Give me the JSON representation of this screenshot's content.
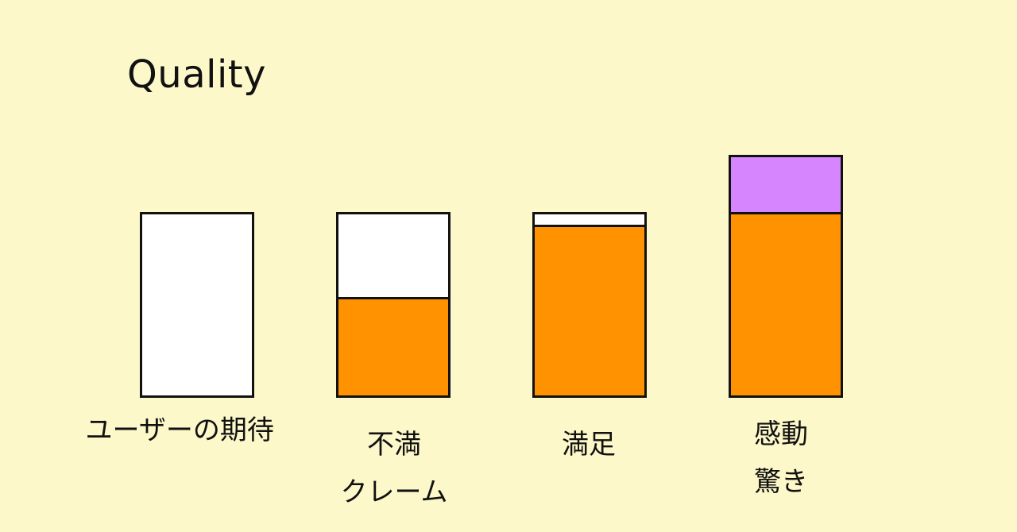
{
  "title": "Quality",
  "colors": {
    "background": "#FDF8C9",
    "fill": "#FF9200",
    "surprise": "#D785FF",
    "empty": "#FFFFFF",
    "border": "#111111"
  },
  "bars": [
    {
      "fill_fraction": 0.0,
      "extra_fraction": 0.0,
      "labels": [
        "ユーザーの期待"
      ]
    },
    {
      "fill_fraction": 0.53,
      "extra_fraction": 0.0,
      "labels": [
        "不満",
        "クレーム"
      ]
    },
    {
      "fill_fraction": 0.93,
      "extra_fraction": 0.0,
      "labels": [
        "満足"
      ]
    },
    {
      "fill_fraction": 1.0,
      "extra_fraction": 0.32,
      "labels": [
        "感動",
        "驚き"
      ]
    }
  ]
}
